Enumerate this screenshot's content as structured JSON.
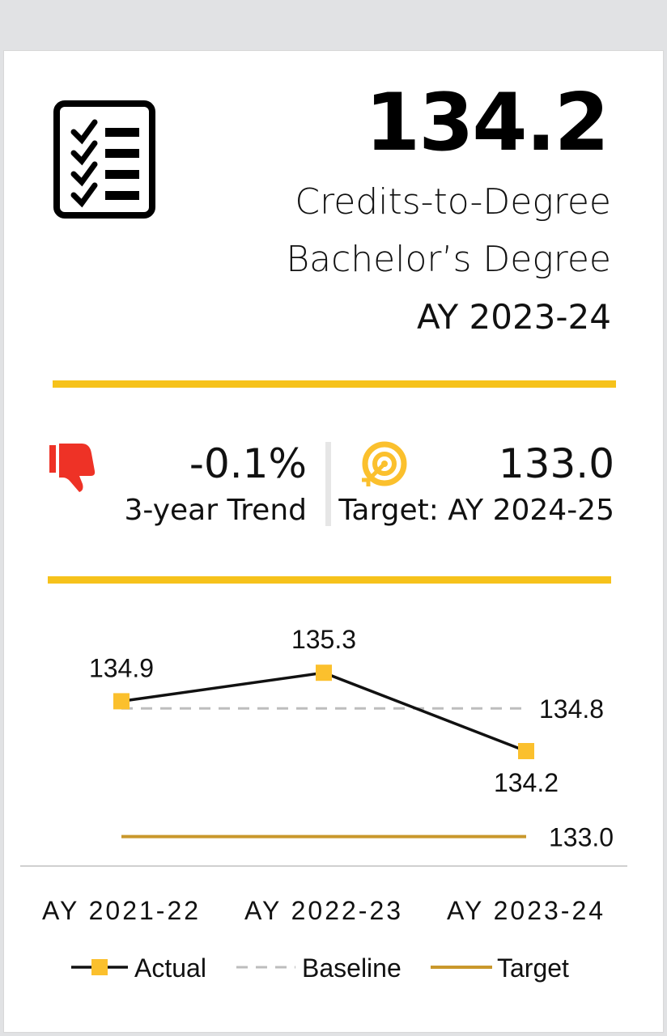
{
  "header": {
    "value": "134.2",
    "metric": "Credits-to-Degree",
    "degree": "Bachelor’s Degree",
    "year": "AY 2023-24",
    "icon": "checklist-icon"
  },
  "trend": {
    "value": "-0.1%",
    "label": "3-year Trend",
    "icon": "thumbs-down-icon",
    "color": "#ee3226"
  },
  "target": {
    "value": "133.0",
    "label": "Target: AY 2024-25",
    "icon": "target-icon",
    "color": "#fbc02d"
  },
  "colors": {
    "accent": "#f6c21b",
    "actual_marker": "#fbc02d",
    "baseline": "#bdbdbd",
    "target_line": "#c9982c"
  },
  "chart_data": {
    "type": "line",
    "categories": [
      "AY 2021-22",
      "AY 2022-23",
      "AY 2023-24"
    ],
    "series": [
      {
        "name": "Actual",
        "values": [
          134.9,
          135.3,
          134.2
        ],
        "labels": [
          "134.9",
          "135.3",
          "134.2"
        ]
      },
      {
        "name": "Baseline",
        "values": [
          134.8,
          134.8,
          134.8
        ],
        "label": "134.8"
      },
      {
        "name": "Target",
        "values": [
          133.0,
          133.0,
          133.0
        ],
        "label": "133.0"
      }
    ],
    "legend": "bottom",
    "grid": false
  }
}
